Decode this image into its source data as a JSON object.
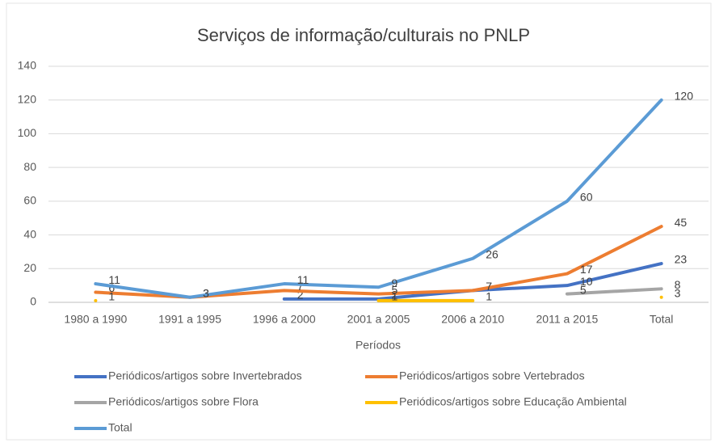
{
  "chart_data": {
    "type": "line",
    "title": "Serviços de informação/culturais no PNLP",
    "x_label": "Períodos",
    "categories": [
      "1980 a 1990",
      "1991 a 1995",
      "1996 a 2000",
      "2001 a 2005",
      "2006 a 2010",
      "2011 a 2015",
      "Total"
    ],
    "series": [
      {
        "name": "Periódicos/artigos sobre Invertebrados",
        "color": "#4472c4",
        "values": [
          null,
          null,
          2,
          2,
          7,
          10,
          23
        ]
      },
      {
        "name": "Periódicos/artigos sobre Vertebrados",
        "color": "#ed7d31",
        "values": [
          6,
          3,
          7,
          5,
          7,
          17,
          45
        ]
      },
      {
        "name": "Periódicos/artigos sobre Flora",
        "color": "#a5a5a5",
        "values": [
          null,
          null,
          null,
          null,
          null,
          5,
          8
        ]
      },
      {
        "name": "Periódicos/artigos sobre Educação Ambiental",
        "color": "#ffc000",
        "values": [
          1,
          null,
          null,
          1,
          1,
          null,
          3
        ]
      },
      {
        "name": "Total",
        "color": "#5b9bd5",
        "values": [
          11,
          3,
          11,
          9,
          26,
          60,
          120
        ]
      }
    ],
    "ylim": [
      0,
      140
    ],
    "yticks": [
      0,
      20,
      40,
      60,
      80,
      100,
      120,
      140
    ],
    "grid": true
  }
}
